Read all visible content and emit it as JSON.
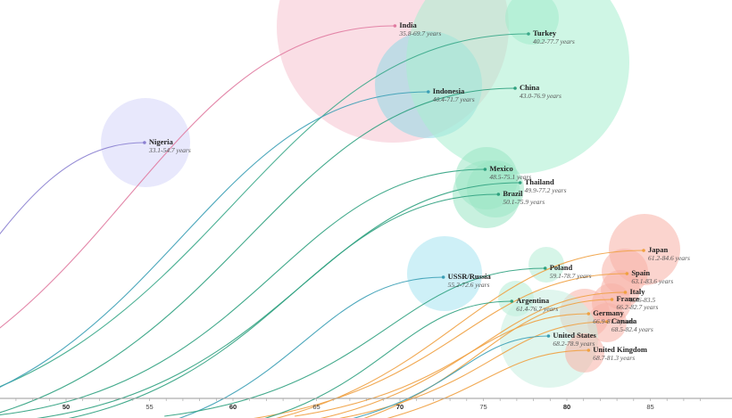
{
  "chart_data": {
    "type": "line",
    "description_free": true,
    "x_axis": {
      "min": 45,
      "max": 88,
      "major_ticks": [
        50,
        60,
        70,
        80
      ],
      "minor_ticks": [
        55,
        65,
        75,
        85
      ]
    },
    "series": [
      {
        "name": "India",
        "range": "35.8-69.7 years",
        "start": 35.8,
        "end": 69.7,
        "color": "#e8a0b4",
        "line": "#e07aa0",
        "bubble": 1.0,
        "bubble_color": "#f6c2cf"
      },
      {
        "name": "Turkey",
        "range": "40.2-77.7 years",
        "start": 40.2,
        "end": 77.7,
        "color": "#4cc49a",
        "line": "#3aa88a",
        "bubble": 0.35,
        "bubble_color": "#9be6c5"
      },
      {
        "name": "Indonesia",
        "range": "40.4-71.7 years",
        "start": 40.4,
        "end": 71.7,
        "color": "#4bb4c8",
        "line": "#3a9eb5",
        "bubble": 0.55,
        "bubble_color": "#8fd8e6"
      },
      {
        "name": "China",
        "range": "43.0-76.9 years",
        "start": 43.0,
        "end": 76.9,
        "color": "#4cc49a",
        "line": "#2fa17f",
        "bubble": 1.0,
        "bubble_color": "#a8efcf"
      },
      {
        "name": "Nigeria",
        "range": "33.1-54.7 years",
        "start": 33.1,
        "end": 54.7,
        "color": "#8a7fd0",
        "line": "#8a7fd0",
        "bubble": 0.6,
        "bubble_color": "#d6d6fa"
      },
      {
        "name": "Mexico",
        "range": "48.5-75.1 years",
        "start": 48.5,
        "end": 75.1,
        "color": "#4cc49a",
        "line": "#2fa17f",
        "bubble": 0.35,
        "bubble_color": "#9be6c5"
      },
      {
        "name": "Thailand",
        "range": "49.9-77.2 years",
        "start": 49.9,
        "end": 77.2,
        "color": "#4cc49a",
        "line": "#2fa17f",
        "bubble": 0.3,
        "bubble_color": "#9be6c5"
      },
      {
        "name": "Brazil",
        "range": "50.1-75.9 years",
        "start": 50.1,
        "end": 75.9,
        "color": "#4cc49a",
        "line": "#2fa17f",
        "bubble": 0.4,
        "bubble_color": "#9be6c5"
      },
      {
        "name": "Japan",
        "range": "61.2-84.6 years",
        "start": 61.2,
        "end": 84.6,
        "color": "#f08a7a",
        "line": "#f0a040",
        "bubble": 0.4,
        "bubble_color": "#f7b0a5"
      },
      {
        "name": "USSR/Russia",
        "range": "55.2-72.6 years",
        "start": 55.2,
        "end": 72.6,
        "color": "#4bb4c8",
        "line": "#3a9eb5",
        "bubble": 0.45,
        "bubble_color": "#a5e3f0"
      },
      {
        "name": "Poland",
        "range": "59.1-78.7 years",
        "start": 59.1,
        "end": 78.7,
        "color": "#4cc49a",
        "line": "#2fa17f",
        "bubble": 0.2,
        "bubble_color": "#b5ecd5"
      },
      {
        "name": "Spain",
        "range": "63.1-83.6 years",
        "start": 63.1,
        "end": 83.6,
        "color": "#f08a7a",
        "line": "#f0a040",
        "bubble": 0.25,
        "bubble_color": "#f7b0a5"
      },
      {
        "name": "Italy",
        "range": "65.6-83.5",
        "start": 65.6,
        "end": 83.5,
        "color": "#f08a7a",
        "line": "#f0a040",
        "bubble": 0.2,
        "bubble_color": "#f7b0a5"
      },
      {
        "name": "Argentina",
        "range": "61.4-76.7 years",
        "start": 61.4,
        "end": 76.7,
        "color": "#4cc49a",
        "line": "#2fa17f",
        "bubble": 0.2,
        "bubble_color": "#b5ecd5"
      },
      {
        "name": "France",
        "range": "66.2-82.7 years",
        "start": 66.2,
        "end": 82.7,
        "color": "#f08a7a",
        "line": "#f0a040",
        "bubble": 0.2,
        "bubble_color": "#f7b0a5"
      },
      {
        "name": "Germany",
        "range": "66.9-81.3 years",
        "start": 66.9,
        "end": 81.3,
        "color": "#f08a7a",
        "line": "#f0a040",
        "bubble": 0.22,
        "bubble_color": "#f7b0a5"
      },
      {
        "name": "Canada",
        "range": "68.5-82.4 years",
        "start": 68.5,
        "end": 82.4,
        "color": "#f08a7a",
        "line": "#f0a040",
        "bubble": 0.18,
        "bubble_color": "#f7b0a5"
      },
      {
        "name": "United States",
        "range": "68.2-78.9 years",
        "start": 68.2,
        "end": 78.9,
        "color": "#4bb4c8",
        "line": "#3a9eb5",
        "bubble": 0.45,
        "bubble_color": "#c6efe0"
      },
      {
        "name": "United Kingdom",
        "range": "68.7-81.3 years",
        "start": 68.7,
        "end": 81.3,
        "color": "#f08a7a",
        "line": "#f0a040",
        "bubble": 0.2,
        "bubble_color": "#f7b0a5"
      }
    ]
  }
}
